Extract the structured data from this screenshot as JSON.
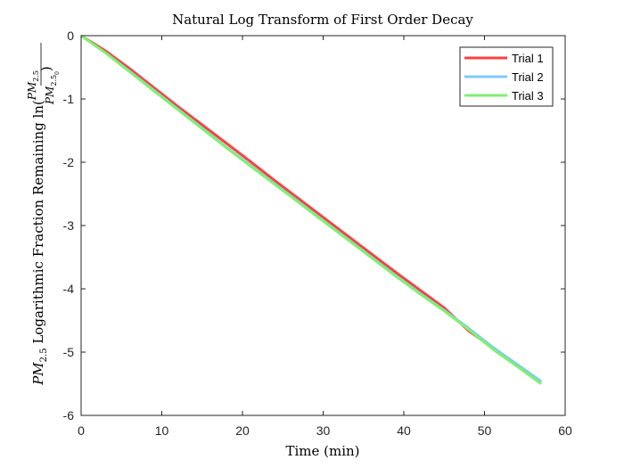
{
  "chart_data": {
    "type": "line",
    "title": "Natural Log Transform of First Order Decay",
    "xlabel": "Time (min)",
    "ylabel": {
      "prefix_math": "PM",
      "prefix_sub": "2.5",
      "text": " Logarithmic Fraction Remaining ln(",
      "num": "PM",
      "num_sub": "2.5",
      "den": "PM",
      "den_sub": "2.5",
      "den_sub0": "0",
      "close": ")"
    },
    "xlim": [
      0,
      60
    ],
    "ylim": [
      -6,
      0
    ],
    "xticks": [
      "0",
      "10",
      "20",
      "30",
      "40",
      "50",
      "60"
    ],
    "yticks": [
      "0",
      "-1",
      "-2",
      "-3",
      "-4",
      "-5",
      "-6"
    ],
    "grid": false,
    "legend_position": "top-right",
    "series": [
      {
        "name": "Trial 1",
        "color": "#ff4040",
        "x": [
          0,
          3,
          6,
          9,
          12,
          15,
          18,
          21,
          24,
          27,
          30,
          33,
          36,
          39,
          42,
          45,
          48,
          51,
          54,
          57
        ],
        "y": [
          0,
          -0.24,
          -0.52,
          -0.82,
          -1.12,
          -1.41,
          -1.7,
          -1.99,
          -2.29,
          -2.58,
          -2.87,
          -3.16,
          -3.45,
          -3.74,
          -4.02,
          -4.3,
          -4.66,
          -4.93,
          -5.2,
          -5.47
        ]
      },
      {
        "name": "Trial 2",
        "color": "#80c8ff",
        "x": [
          0,
          3,
          6,
          9,
          12,
          15,
          18,
          21,
          24,
          27,
          30,
          33,
          36,
          39,
          42,
          45,
          48,
          51,
          54,
          57
        ],
        "y": [
          0,
          -0.27,
          -0.56,
          -0.86,
          -1.16,
          -1.46,
          -1.76,
          -2.05,
          -2.34,
          -2.63,
          -2.92,
          -3.21,
          -3.5,
          -3.79,
          -4.07,
          -4.34,
          -4.62,
          -4.92,
          -5.19,
          -5.46
        ]
      },
      {
        "name": "Trial 3",
        "color": "#80f070",
        "x": [
          0,
          3,
          6,
          9,
          12,
          15,
          18,
          21,
          24,
          27,
          30,
          33,
          36,
          39,
          42,
          45,
          48,
          51,
          54,
          57
        ],
        "y": [
          0,
          -0.27,
          -0.57,
          -0.87,
          -1.17,
          -1.47,
          -1.77,
          -2.06,
          -2.35,
          -2.64,
          -2.93,
          -3.22,
          -3.51,
          -3.8,
          -4.08,
          -4.35,
          -4.64,
          -4.95,
          -5.22,
          -5.5
        ]
      }
    ]
  }
}
